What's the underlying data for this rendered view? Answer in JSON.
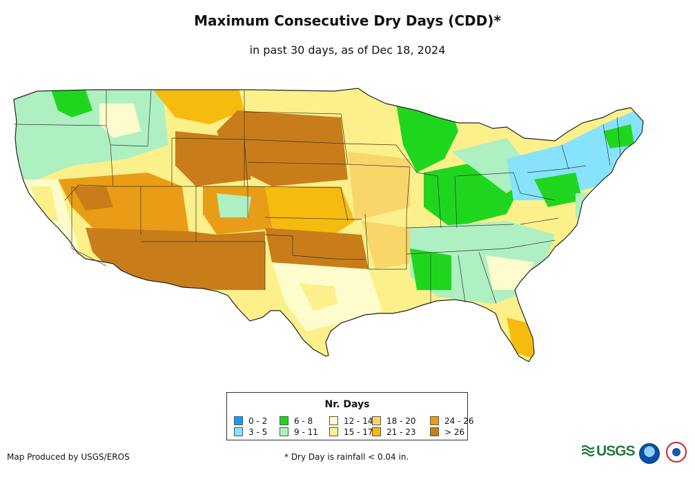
{
  "header": {
    "title": "Maximum Consecutive Dry Days (CDD)*",
    "subtitle": "in past 30 days, as of Dec 18, 2024"
  },
  "legend": {
    "title": "Nr. Days",
    "items": [
      {
        "label": "0 - 2",
        "color": "#1a9af0"
      },
      {
        "label": "3 - 5",
        "color": "#86e3fb"
      },
      {
        "label": "6 - 8",
        "color": "#1fd61f"
      },
      {
        "label": "9 - 11",
        "color": "#aef0c2"
      },
      {
        "label": "12 - 14",
        "color": "#fdfccc"
      },
      {
        "label": "15 - 17",
        "color": "#fbf08a"
      },
      {
        "label": "18 - 20",
        "color": "#f9d66a"
      },
      {
        "label": "21 - 23",
        "color": "#f5bb0f"
      },
      {
        "label": "24 - 26",
        "color": "#e99d16"
      },
      {
        "label": "> 26",
        "color": "#c97d1a"
      }
    ]
  },
  "footer": {
    "credit": "Map Produced by USGS/EROS",
    "footnote": "* Dry Day is rainfall < 0.04 in.",
    "logos": [
      "USGS",
      "NOAA",
      "NWS"
    ]
  },
  "logo_text": "USGS"
}
